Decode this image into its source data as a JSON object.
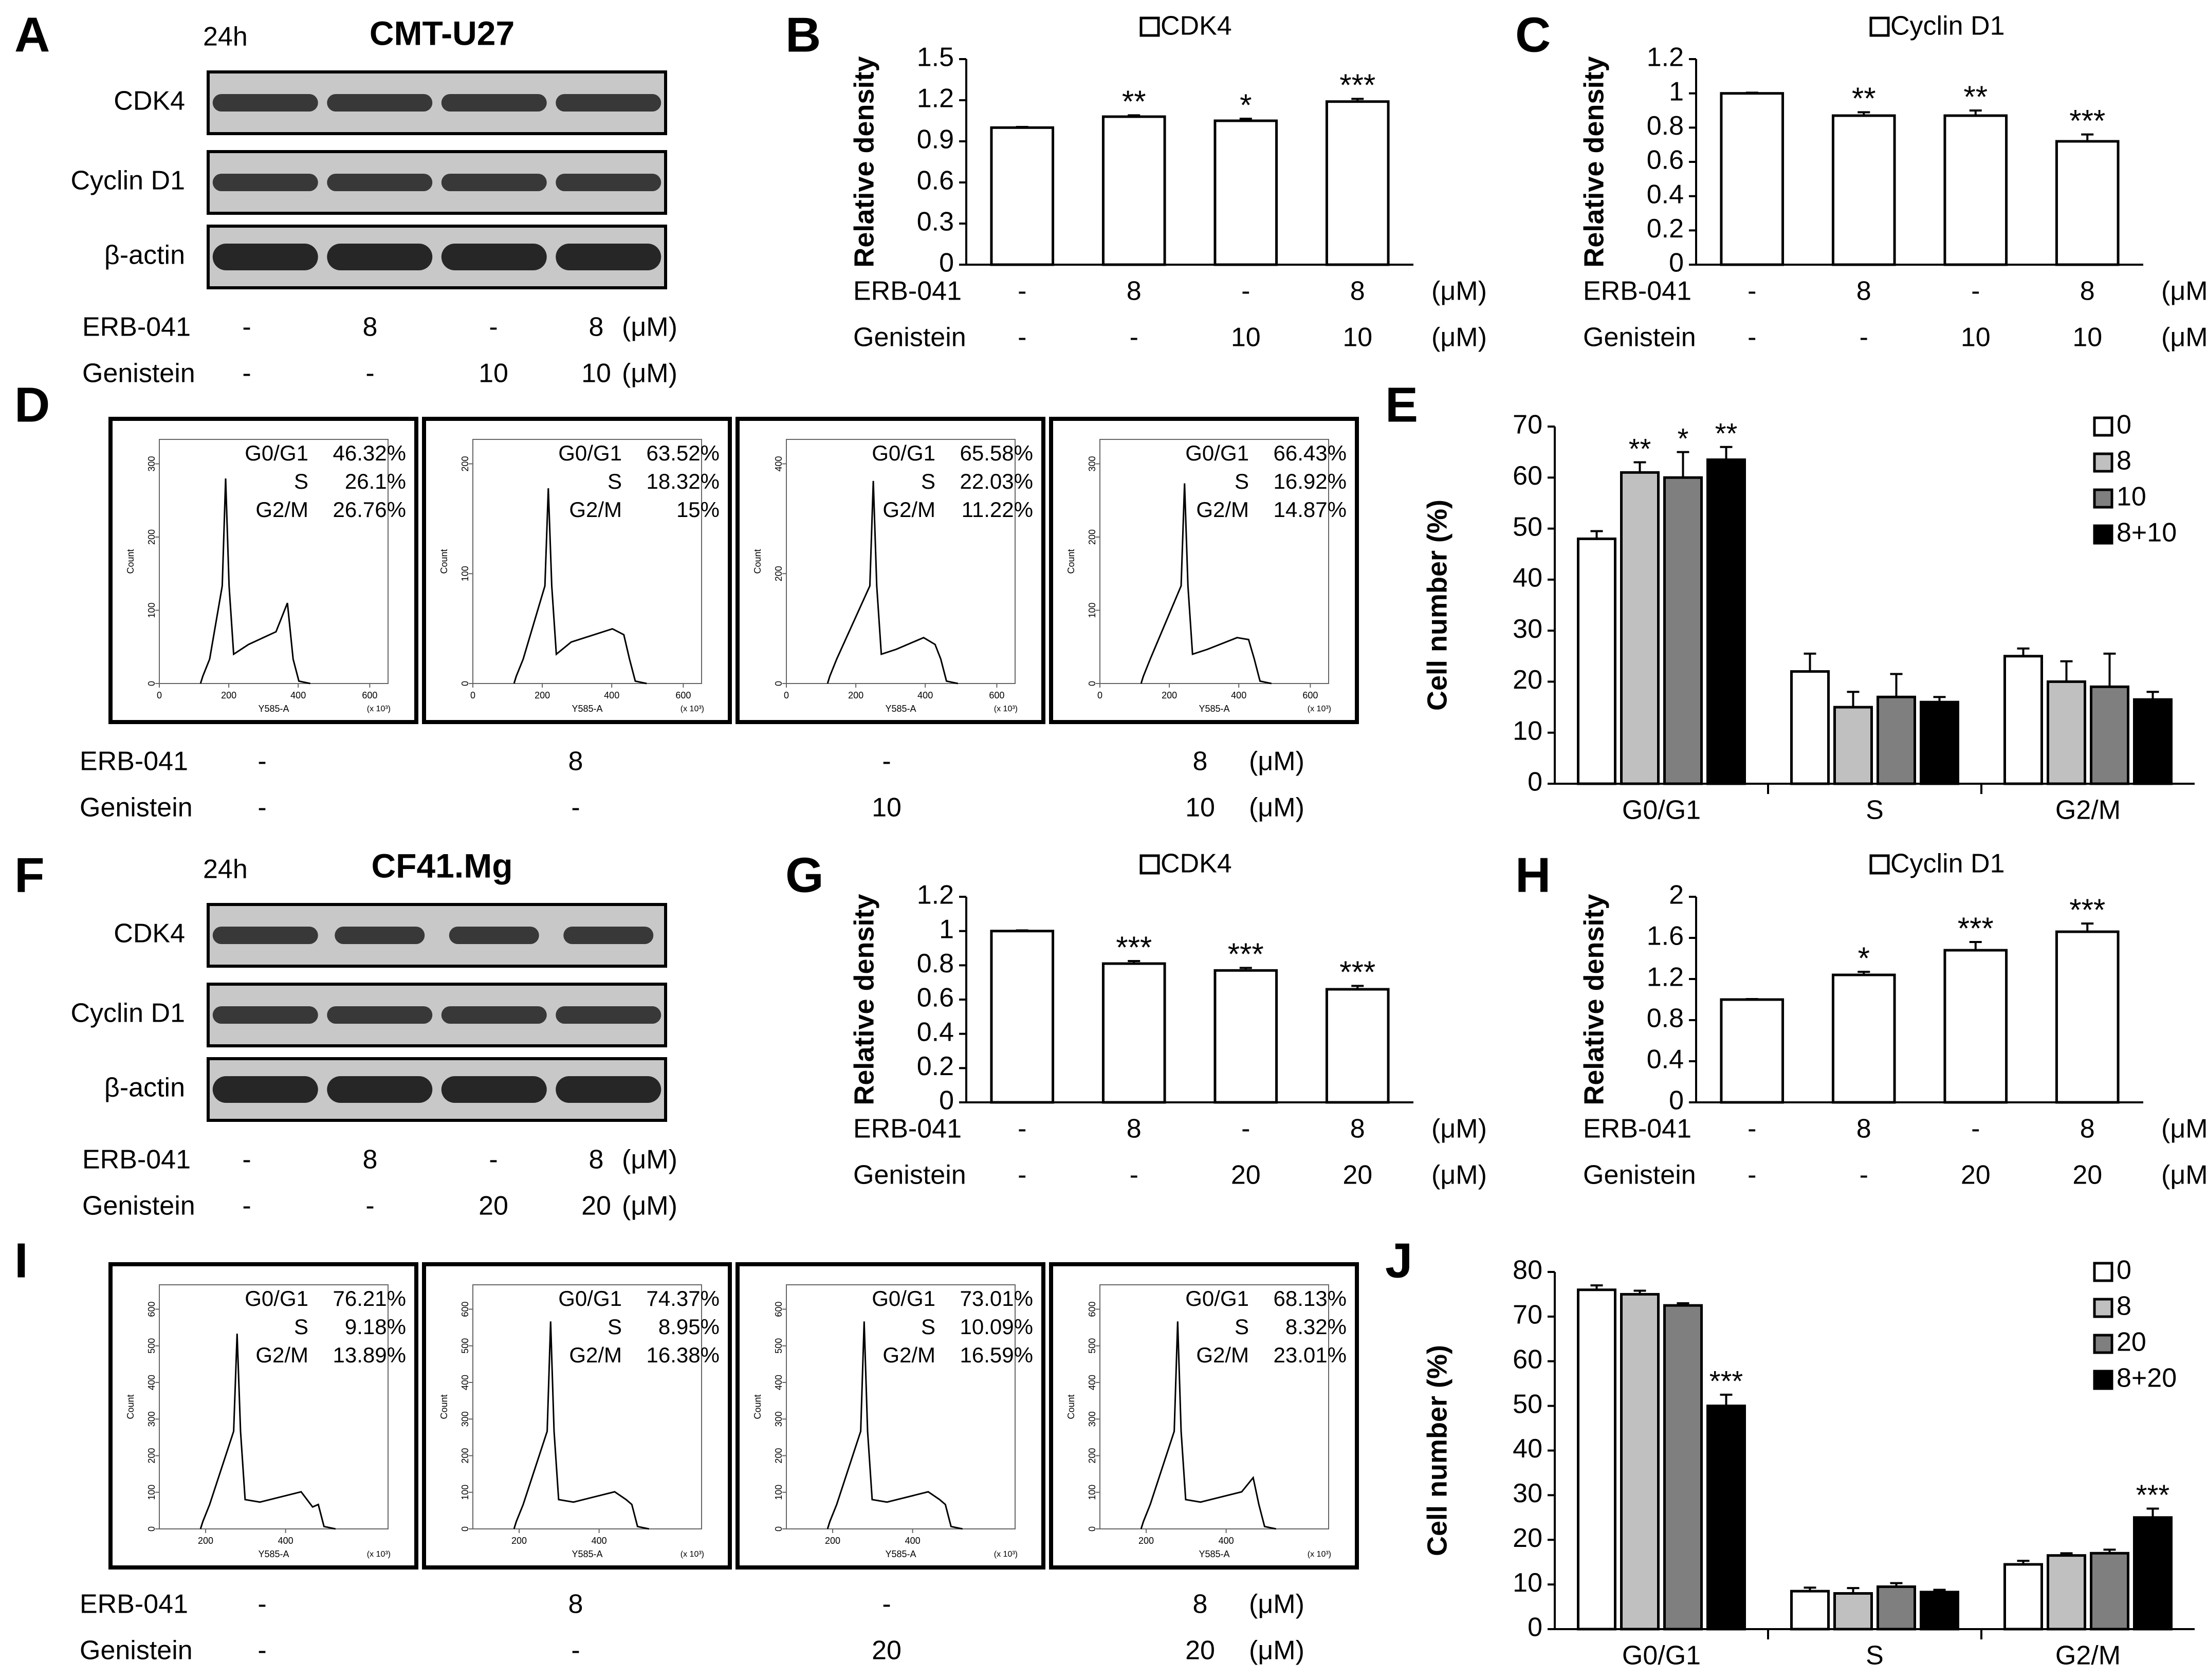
{
  "colors": {
    "black": "#000000",
    "white": "#ffffff",
    "light_gray": "#c0c0c0",
    "dark_gray": "#7f7f7f",
    "band_dark": "#1e1e1e",
    "blot_bg": "#c8c8c8"
  },
  "panels": {
    "A": {
      "letter": "A",
      "time": "24h",
      "cell_line": "CMT-U27",
      "rows": [
        "CDK4",
        "Cyclin D1",
        "β-actin"
      ],
      "treat": {
        "erb_label": "ERB-041",
        "erb": [
          "-",
          "8",
          "-",
          "8"
        ],
        "gen_label": "Genistein",
        "gen": [
          "-",
          "-",
          "10",
          "10"
        ],
        "unit": "(μM)"
      }
    },
    "D": {
      "letter": "D",
      "histograms": [
        {
          "stats": [
            [
              "G0/G1",
              "46.32%"
            ],
            [
              "S",
              "26.1%"
            ],
            [
              "G2/M",
              "26.76%"
            ]
          ],
          "yticks": [
            "0",
            "100",
            "200",
            "300"
          ],
          "xticks": [
            "0",
            "200",
            "400",
            "600"
          ],
          "xlabel": "Y585-A",
          "xunit": "(x 10³)",
          "ylabel": "Count"
        },
        {
          "stats": [
            [
              "G0/G1",
              "63.52%"
            ],
            [
              "S",
              "18.32%"
            ],
            [
              "G2/M",
              "15%"
            ]
          ],
          "yticks": [
            "0",
            "100",
            "200"
          ],
          "xticks": [
            "0",
            "200",
            "400",
            "600"
          ],
          "xlabel": "Y585-A",
          "xunit": "(x 10³)",
          "ylabel": "Count"
        },
        {
          "stats": [
            [
              "G0/G1",
              "65.58%"
            ],
            [
              "S",
              "22.03%"
            ],
            [
              "G2/M",
              "11.22%"
            ]
          ],
          "yticks": [
            "0",
            "200",
            "400"
          ],
          "xticks": [
            "0",
            "200",
            "400",
            "600"
          ],
          "xlabel": "Y585-A",
          "xunit": "(x 10³)",
          "ylabel": "Count"
        },
        {
          "stats": [
            [
              "G0/G1",
              "66.43%"
            ],
            [
              "S",
              "16.92%"
            ],
            [
              "G2/M",
              "14.87%"
            ]
          ],
          "yticks": [
            "0",
            "100",
            "200",
            "300"
          ],
          "xticks": [
            "0",
            "200",
            "400",
            "600"
          ],
          "xlabel": "Y585-A",
          "xunit": "(x 10³)",
          "ylabel": "Count"
        }
      ],
      "treat": {
        "erb_label": "ERB-041",
        "erb": [
          "-",
          "8",
          "-",
          "8"
        ],
        "gen_label": "Genistein",
        "gen": [
          "-",
          "-",
          "10",
          "10"
        ],
        "unit": "(μM)"
      }
    },
    "F": {
      "letter": "F",
      "time": "24h",
      "cell_line": "CF41.Mg",
      "rows": [
        "CDK4",
        "Cyclin D1",
        "β-actin"
      ],
      "treat": {
        "erb_label": "ERB-041",
        "erb": [
          "-",
          "8",
          "-",
          "8"
        ],
        "gen_label": "Genistein",
        "gen": [
          "-",
          "-",
          "20",
          "20"
        ],
        "unit": "(μM)"
      }
    },
    "I": {
      "letter": "I",
      "histograms": [
        {
          "stats": [
            [
              "G0/G1",
              "76.21%"
            ],
            [
              "S",
              "9.18%"
            ],
            [
              "G2/M",
              "13.89%"
            ]
          ],
          "yticks": [
            "0",
            "100",
            "200",
            "300",
            "400",
            "500",
            "600"
          ],
          "xticks": [
            "200",
            "400"
          ],
          "xlabel": "Y585-A",
          "xunit": "(x 10³)",
          "ylabel": "Count"
        },
        {
          "stats": [
            [
              "G0/G1",
              "74.37%"
            ],
            [
              "S",
              "8.95%"
            ],
            [
              "G2/M",
              "16.38%"
            ]
          ],
          "yticks": [
            "0",
            "100",
            "200",
            "300",
            "400",
            "500",
            "600"
          ],
          "xticks": [
            "200",
            "400"
          ],
          "xlabel": "Y585-A",
          "xunit": "(x 10³)",
          "ylabel": "Count"
        },
        {
          "stats": [
            [
              "G0/G1",
              "73.01%"
            ],
            [
              "S",
              "10.09%"
            ],
            [
              "G2/M",
              "16.59%"
            ]
          ],
          "yticks": [
            "0",
            "100",
            "200",
            "300",
            "400",
            "500",
            "600"
          ],
          "xticks": [
            "200",
            "400"
          ],
          "xlabel": "Y585-A",
          "xunit": "(x 10³)",
          "ylabel": "Count"
        },
        {
          "stats": [
            [
              "G0/G1",
              "68.13%"
            ],
            [
              "S",
              "8.32%"
            ],
            [
              "G2/M",
              "23.01%"
            ]
          ],
          "yticks": [
            "0",
            "100",
            "200",
            "300",
            "400",
            "500",
            "600"
          ],
          "xticks": [
            "200",
            "400"
          ],
          "xlabel": "Y585-A",
          "xunit": "(x 10³)",
          "ylabel": "Count"
        }
      ],
      "treat": {
        "erb_label": "ERB-041",
        "erb": [
          "-",
          "8",
          "-",
          "8"
        ],
        "gen_label": "Genistein",
        "gen": [
          "-",
          "-",
          "20",
          "20"
        ],
        "unit": "(μM)"
      }
    }
  },
  "chart_data": [
    {
      "id": "B",
      "letter": "B",
      "type": "bar",
      "legend": "CDK4",
      "ylabel": "Relative density",
      "ylim": [
        0,
        1.5
      ],
      "yticks": [
        "0",
        "0.3",
        "0.6",
        "0.9",
        "1.2",
        "1.5"
      ],
      "values": [
        1.0,
        1.08,
        1.05,
        1.19
      ],
      "errors": [
        0.005,
        0.01,
        0.015,
        0.02
      ],
      "significance": [
        "",
        "**",
        "*",
        "***"
      ],
      "treat": {
        "erb_label": "ERB-041",
        "erb": [
          "-",
          "8",
          "-",
          "8"
        ],
        "gen_label": "Genistein",
        "gen": [
          "-",
          "-",
          "10",
          "10"
        ],
        "unit": "(μM)"
      }
    },
    {
      "id": "C",
      "letter": "C",
      "type": "bar",
      "legend": "Cyclin D1",
      "ylabel": "Relative density",
      "ylim": [
        0,
        1.2
      ],
      "yticks": [
        "0",
        "0.2",
        "0.4",
        "0.6",
        "0.8",
        "1",
        "1.2"
      ],
      "values": [
        1.0,
        0.87,
        0.87,
        0.72
      ],
      "errors": [
        0.004,
        0.02,
        0.03,
        0.04
      ],
      "significance": [
        "",
        "**",
        "**",
        "***"
      ],
      "treat": {
        "erb_label": "ERB-041",
        "erb": [
          "-",
          "8",
          "-",
          "8"
        ],
        "gen_label": "Genistein",
        "gen": [
          "-",
          "-",
          "10",
          "10"
        ],
        "unit": "(μM)"
      }
    },
    {
      "id": "E",
      "letter": "E",
      "type": "bar",
      "ylabel": "Cell number (%)",
      "ylim": [
        0,
        70
      ],
      "yticks": [
        "0",
        "10",
        "20",
        "30",
        "40",
        "50",
        "60",
        "70"
      ],
      "categories": [
        "G0/G1",
        "S",
        "G2/M"
      ],
      "series": [
        {
          "name": "0",
          "color": "#ffffff",
          "values": [
            48,
            22,
            25
          ],
          "errors": [
            1.5,
            3.5,
            1.5
          ],
          "significance": [
            "",
            "",
            ""
          ]
        },
        {
          "name": "8",
          "color": "#c0c0c0",
          "values": [
            61,
            15,
            20
          ],
          "errors": [
            2.0,
            3.0,
            4.0
          ],
          "significance": [
            "**",
            "",
            ""
          ]
        },
        {
          "name": "10",
          "color": "#7f7f7f",
          "values": [
            60,
            17,
            19
          ],
          "errors": [
            5.0,
            4.5,
            6.5
          ],
          "significance": [
            "*",
            "",
            ""
          ]
        },
        {
          "name": "8+10",
          "color": "#000000",
          "values": [
            63.5,
            16,
            16.5
          ],
          "errors": [
            2.5,
            1.0,
            1.5
          ],
          "significance": [
            "**",
            "",
            ""
          ]
        }
      ]
    },
    {
      "id": "G",
      "letter": "G",
      "type": "bar",
      "legend": "CDK4",
      "ylabel": "Relative density",
      "ylim": [
        0,
        1.2
      ],
      "yticks": [
        "0",
        "0.2",
        "0.4",
        "0.6",
        "0.8",
        "1",
        "1.2"
      ],
      "values": [
        1.0,
        0.81,
        0.77,
        0.66
      ],
      "errors": [
        0.004,
        0.015,
        0.015,
        0.02
      ],
      "significance": [
        "",
        "***",
        "***",
        "***"
      ],
      "treat": {
        "erb_label": "ERB-041",
        "erb": [
          "-",
          "8",
          "-",
          "8"
        ],
        "gen_label": "Genistein",
        "gen": [
          "-",
          "-",
          "20",
          "20"
        ],
        "unit": "(μM)"
      }
    },
    {
      "id": "H",
      "letter": "H",
      "type": "bar",
      "legend": "Cyclin D1",
      "ylabel": "Relative density",
      "ylim": [
        0,
        2
      ],
      "yticks": [
        "0",
        "0.4",
        "0.8",
        "1.2",
        "1.6",
        "2"
      ],
      "values": [
        1.0,
        1.24,
        1.48,
        1.66
      ],
      "errors": [
        0.005,
        0.03,
        0.08,
        0.08
      ],
      "significance": [
        "",
        "*",
        "***",
        "***"
      ],
      "treat": {
        "erb_label": "ERB-041",
        "erb": [
          "-",
          "8",
          "-",
          "8"
        ],
        "gen_label": "Genistein",
        "gen": [
          "-",
          "-",
          "20",
          "20"
        ],
        "unit": "(μM)"
      }
    },
    {
      "id": "J",
      "letter": "J",
      "type": "bar",
      "ylabel": "Cell number (%)",
      "ylim": [
        0,
        80
      ],
      "yticks": [
        "0",
        "10",
        "20",
        "30",
        "40",
        "50",
        "60",
        "70",
        "80"
      ],
      "categories": [
        "G0/G1",
        "S",
        "G2/M"
      ],
      "series": [
        {
          "name": "0",
          "color": "#ffffff",
          "values": [
            76,
            8.5,
            14.5
          ],
          "errors": [
            1.0,
            0.8,
            0.8
          ],
          "significance": [
            "",
            "",
            ""
          ]
        },
        {
          "name": "8",
          "color": "#c0c0c0",
          "values": [
            75,
            8,
            16.5
          ],
          "errors": [
            0.8,
            1.2,
            0.5
          ],
          "significance": [
            "",
            "",
            ""
          ]
        },
        {
          "name": "20",
          "color": "#7f7f7f",
          "values": [
            72.5,
            9.5,
            17
          ],
          "errors": [
            0.5,
            0.8,
            0.8
          ],
          "significance": [
            "",
            "",
            ""
          ]
        },
        {
          "name": "8+20",
          "color": "#000000",
          "values": [
            50,
            8.3,
            25
          ],
          "errors": [
            2.5,
            0.5,
            2.0
          ],
          "significance": [
            "***",
            "",
            "***"
          ]
        }
      ]
    }
  ]
}
